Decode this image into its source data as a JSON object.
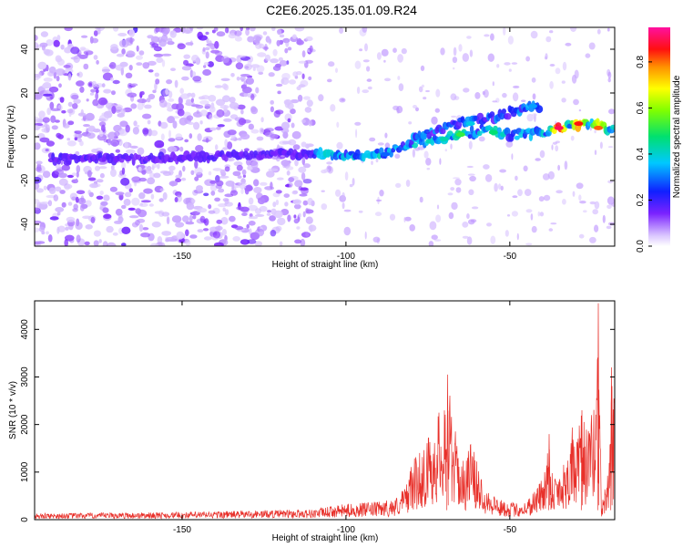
{
  "title": "C2E6.2025.135.01.09.R24",
  "colors": {
    "snr_line": "#e8302a",
    "spectro_low": "#8f3cff",
    "background": "#ffffff"
  },
  "chart_data": [
    {
      "type": "heatmap",
      "name": "spectrogram",
      "xlabel": "Height of straight line (km)",
      "ylabel": "Frequency (Hz)",
      "xlim": [
        -195,
        -18
      ],
      "ylim": [
        -50,
        50
      ],
      "xticks": [
        -150,
        -100,
        -50
      ],
      "yticks": [
        -40,
        -20,
        0,
        20,
        40
      ],
      "colorbar": {
        "label": "Normalized spectral amplitude",
        "range": [
          0,
          0.95
        ],
        "ticks": [
          0.0,
          0.2,
          0.4,
          0.6,
          0.8
        ],
        "colormap": "rainbow (white-purple-blue-cyan-green-yellow-orange-red-magenta)"
      },
      "ridges": [
        {
          "description": "main signal track",
          "points": [
            [
              -190,
              -10
            ],
            [
              -165,
              -10
            ],
            [
              -140,
              -9
            ],
            [
              -120,
              -8
            ],
            [
              -108,
              -8
            ],
            [
              -95,
              -8
            ],
            [
              -88,
              -7
            ],
            [
              -82,
              -5
            ],
            [
              -78,
              -3
            ],
            [
              -72,
              -1
            ],
            [
              -65,
              1
            ],
            [
              -58,
              3
            ],
            [
              -50,
              1
            ],
            [
              -45,
              1
            ],
            [
              -40,
              2
            ],
            [
              -35,
              4
            ],
            [
              -30,
              5
            ],
            [
              -25,
              6
            ],
            [
              -22,
              5
            ],
            [
              -18,
              3
            ]
          ]
        },
        {
          "description": "upper branch",
          "points": [
            [
              -80,
              -2
            ],
            [
              -72,
              3
            ],
            [
              -65,
              6
            ],
            [
              -58,
              8
            ],
            [
              -52,
              10
            ],
            [
              -48,
              12
            ],
            [
              -44,
              14
            ],
            [
              -41,
              14
            ]
          ]
        }
      ],
      "hot_spots": [
        [
          -35,
          4,
          0.95
        ],
        [
          -29,
          6,
          0.9
        ],
        [
          -23,
          4,
          0.85
        ],
        [
          -65,
          1,
          0.55
        ],
        [
          -55,
          2,
          0.5
        ],
        [
          -43,
          14,
          0.35
        ],
        [
          -88,
          -8,
          0.3
        ],
        [
          -70,
          -1,
          0.45
        ],
        [
          -62,
          6,
          0.4
        ]
      ],
      "noise_region": {
        "x": [
          -195,
          -110
        ],
        "y": [
          -50,
          50
        ]
      }
    },
    {
      "type": "line",
      "name": "snr",
      "xlabel": "Height of straight line (km)",
      "ylabel": "SNR (10 * v/v)",
      "xlim": [
        -195,
        -18
      ],
      "ylim": [
        0,
        4600
      ],
      "xticks": [
        -150,
        -100,
        -50
      ],
      "yticks": [
        0,
        1000,
        2000,
        3000,
        4000
      ],
      "series": [
        {
          "envelope": [
            [
              -195,
              130
            ],
            [
              -150,
              160
            ],
            [
              -125,
              200
            ],
            [
              -110,
              220
            ],
            [
              -100,
              330
            ],
            [
              -90,
              380
            ],
            [
              -85,
              450
            ],
            [
              -82,
              700
            ],
            [
              -80,
              1200
            ],
            [
              -76,
              1600
            ],
            [
              -72,
              2200
            ],
            [
              -70,
              2800
            ],
            [
              -69,
              3050
            ],
            [
              -68,
              2500
            ],
            [
              -66,
              1600
            ],
            [
              -64,
              1200
            ],
            [
              -62,
              1700
            ],
            [
              -60,
              1200
            ],
            [
              -57,
              700
            ],
            [
              -53,
              420
            ],
            [
              -48,
              350
            ],
            [
              -45,
              400
            ],
            [
              -42,
              700
            ],
            [
              -40,
              900
            ],
            [
              -38,
              1800
            ],
            [
              -37,
              1000
            ],
            [
              -35,
              1100
            ],
            [
              -33,
              1300
            ],
            [
              -31,
              2000
            ],
            [
              -30,
              1500
            ],
            [
              -28,
              2300
            ],
            [
              -26,
              1900
            ],
            [
              -24,
              2600
            ],
            [
              -23,
              4550
            ],
            [
              -22,
              300
            ],
            [
              -20,
              1000
            ],
            [
              -19,
              3200
            ],
            [
              -18,
              2500
            ]
          ]
        }
      ]
    }
  ]
}
